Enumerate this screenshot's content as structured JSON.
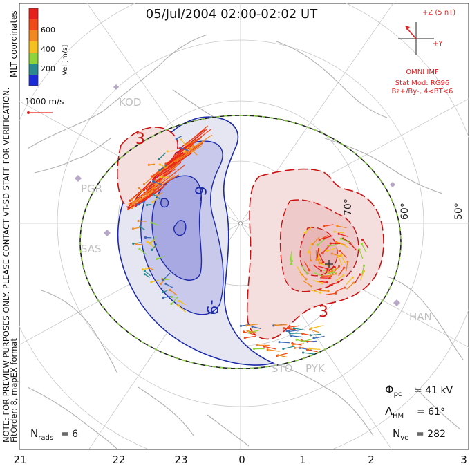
{
  "title": "05/Jul/2004 02:00-02:02 UT",
  "coordinates_label": "MLT coordinates",
  "colorbar": {
    "label": "Vel [m/s]",
    "ticks": [
      "600",
      "400",
      "200"
    ],
    "colors": [
      "#e8201a",
      "#f07a1e",
      "#f5c020",
      "#8fd43a",
      "#2a9a8a",
      "#3a6ab8",
      "#1a2ad8"
    ]
  },
  "scale_vector_label": "1000 m/s",
  "imf": {
    "z_label": "+Z (5 nT)",
    "y_label": "+Y",
    "source": "OMNI IMF",
    "stat_mod": "Stat Mod: RG96",
    "condition": "Bz+/By-, 4<BT<6"
  },
  "stations": [
    "KOD",
    "PGR",
    "SAS",
    "HAN",
    "STO",
    "PYK"
  ],
  "latitude_labels": [
    "70°",
    "60°",
    "50°"
  ],
  "contour_labels": [
    "3",
    "-9",
    "-9",
    "3"
  ],
  "mlt_ticks": [
    "21",
    "22",
    "23",
    "0",
    "1",
    "2",
    "3"
  ],
  "preview_notice": "NOTE: FOR PREVIEW PURPOSES ONLY. PLEASE CONTACT VT-SD STAFF FOR VERIFICATION.",
  "fit_info": "FitOrder: 8, mapEX format",
  "stats": {
    "phi_pc": "= 41 kV",
    "lambda_hm": "= 61°",
    "n_vc": "= 282",
    "n_rads": "= 6"
  },
  "colors": {
    "negative_cell": "#2233aa",
    "positive_cell": "#cc1111",
    "boundary": "#222222",
    "boundary_dash": "#88cc44",
    "imf_text": "#e02020",
    "station": "#b8a8c8"
  }
}
